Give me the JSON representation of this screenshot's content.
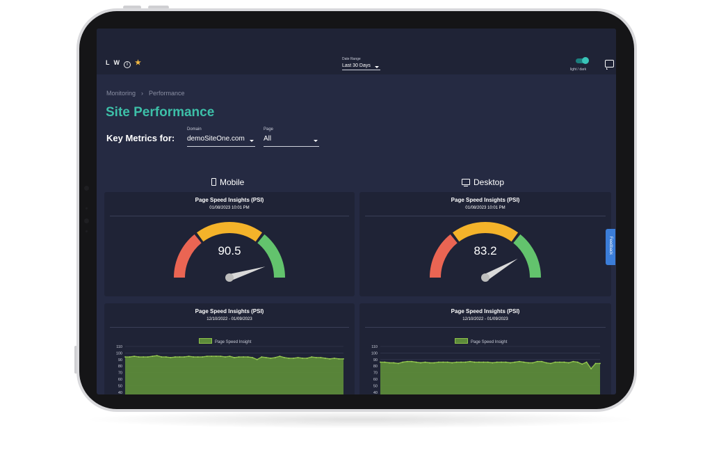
{
  "brand": {
    "letter1": "L",
    "letter2": "W",
    "info_glyph": "i",
    "star_glyph": "★",
    "icons": [
      "info-icon",
      "star-icon"
    ]
  },
  "date_range": {
    "label": "Date Range",
    "value": "Last 30 Days"
  },
  "theme_toggle": {
    "label": "light / dark",
    "state": "on",
    "color": "#39c4b8"
  },
  "breadcrumb": {
    "items": [
      "Monitoring",
      "Performance"
    ],
    "separator": "›"
  },
  "page_title": "Site Performance",
  "key_metrics": {
    "label": "Key Metrics for:",
    "domain": {
      "label": "Domain",
      "value": "demoSiteOne.com"
    },
    "page": {
      "label": "Page",
      "value": "All"
    }
  },
  "sections": {
    "mobile": {
      "heading": "Mobile",
      "icon": "phone-icon"
    },
    "desktop": {
      "heading": "Desktop",
      "icon": "monitor-icon"
    }
  },
  "gauges": {
    "mobile": {
      "title": "Page Speed Insights (PSI)",
      "timestamp": "01/08/2023 10:01 PM",
      "value": "90.5"
    },
    "desktop": {
      "title": "Page Speed Insights (PSI)",
      "timestamp": "01/08/2023 10:01 PM",
      "value": "83.2"
    },
    "colors": {
      "low": "#ea6553",
      "mid": "#f4b32a",
      "high": "#63c36d"
    }
  },
  "charts": {
    "mobile": {
      "title": "Page Speed Insights (PSI)",
      "range": "12/10/2022 - 01/09/2023"
    },
    "desktop": {
      "title": "Page Speed Insights (PSI)",
      "range": "12/10/2022 - 01/09/2023"
    }
  },
  "chart_data": [
    {
      "type": "area",
      "title": "Page Speed Insights (PSI)",
      "subtitle": "12/10/2022 - 01/09/2023",
      "series": [
        {
          "name": "Page Speed Insight",
          "values": [
            94,
            94,
            95,
            94,
            94,
            94,
            95,
            96,
            94,
            94,
            93,
            94,
            94,
            94,
            95,
            94,
            94,
            94,
            95,
            95,
            95,
            95,
            94,
            95,
            93,
            94,
            94,
            94,
            93,
            90,
            94,
            93,
            92,
            93,
            95,
            93,
            92,
            92,
            93,
            92,
            92,
            94,
            93,
            93,
            92,
            91,
            92,
            91,
            91
          ]
        }
      ],
      "yticks": [
        "110",
        "100",
        "90",
        "80",
        "70",
        "60",
        "50",
        "40"
      ],
      "ylim": [
        40,
        110
      ],
      "color": "#5c8a3a",
      "grid": true,
      "legend": "top-center"
    },
    {
      "type": "area",
      "title": "Page Speed Insights (PSI)",
      "subtitle": "12/10/2022 - 01/09/2023",
      "series": [
        {
          "name": "Page Speed Insight",
          "values": [
            86,
            86,
            85,
            85,
            84,
            86,
            87,
            87,
            86,
            85,
            86,
            85,
            85,
            86,
            86,
            86,
            85,
            86,
            86,
            86,
            87,
            86,
            86,
            86,
            86,
            85,
            86,
            86,
            86,
            85,
            86,
            87,
            86,
            85,
            85,
            87,
            87,
            85,
            84,
            86,
            86,
            86,
            85,
            87,
            86,
            83,
            86,
            76,
            84,
            84
          ]
        }
      ],
      "yticks": [
        "110",
        "100",
        "90",
        "80",
        "70",
        "60",
        "50",
        "40"
      ],
      "ylim": [
        40,
        110
      ],
      "color": "#5c8a3a",
      "grid": true,
      "legend": "top-center"
    }
  ],
  "feedback": {
    "label": "Feedback"
  }
}
